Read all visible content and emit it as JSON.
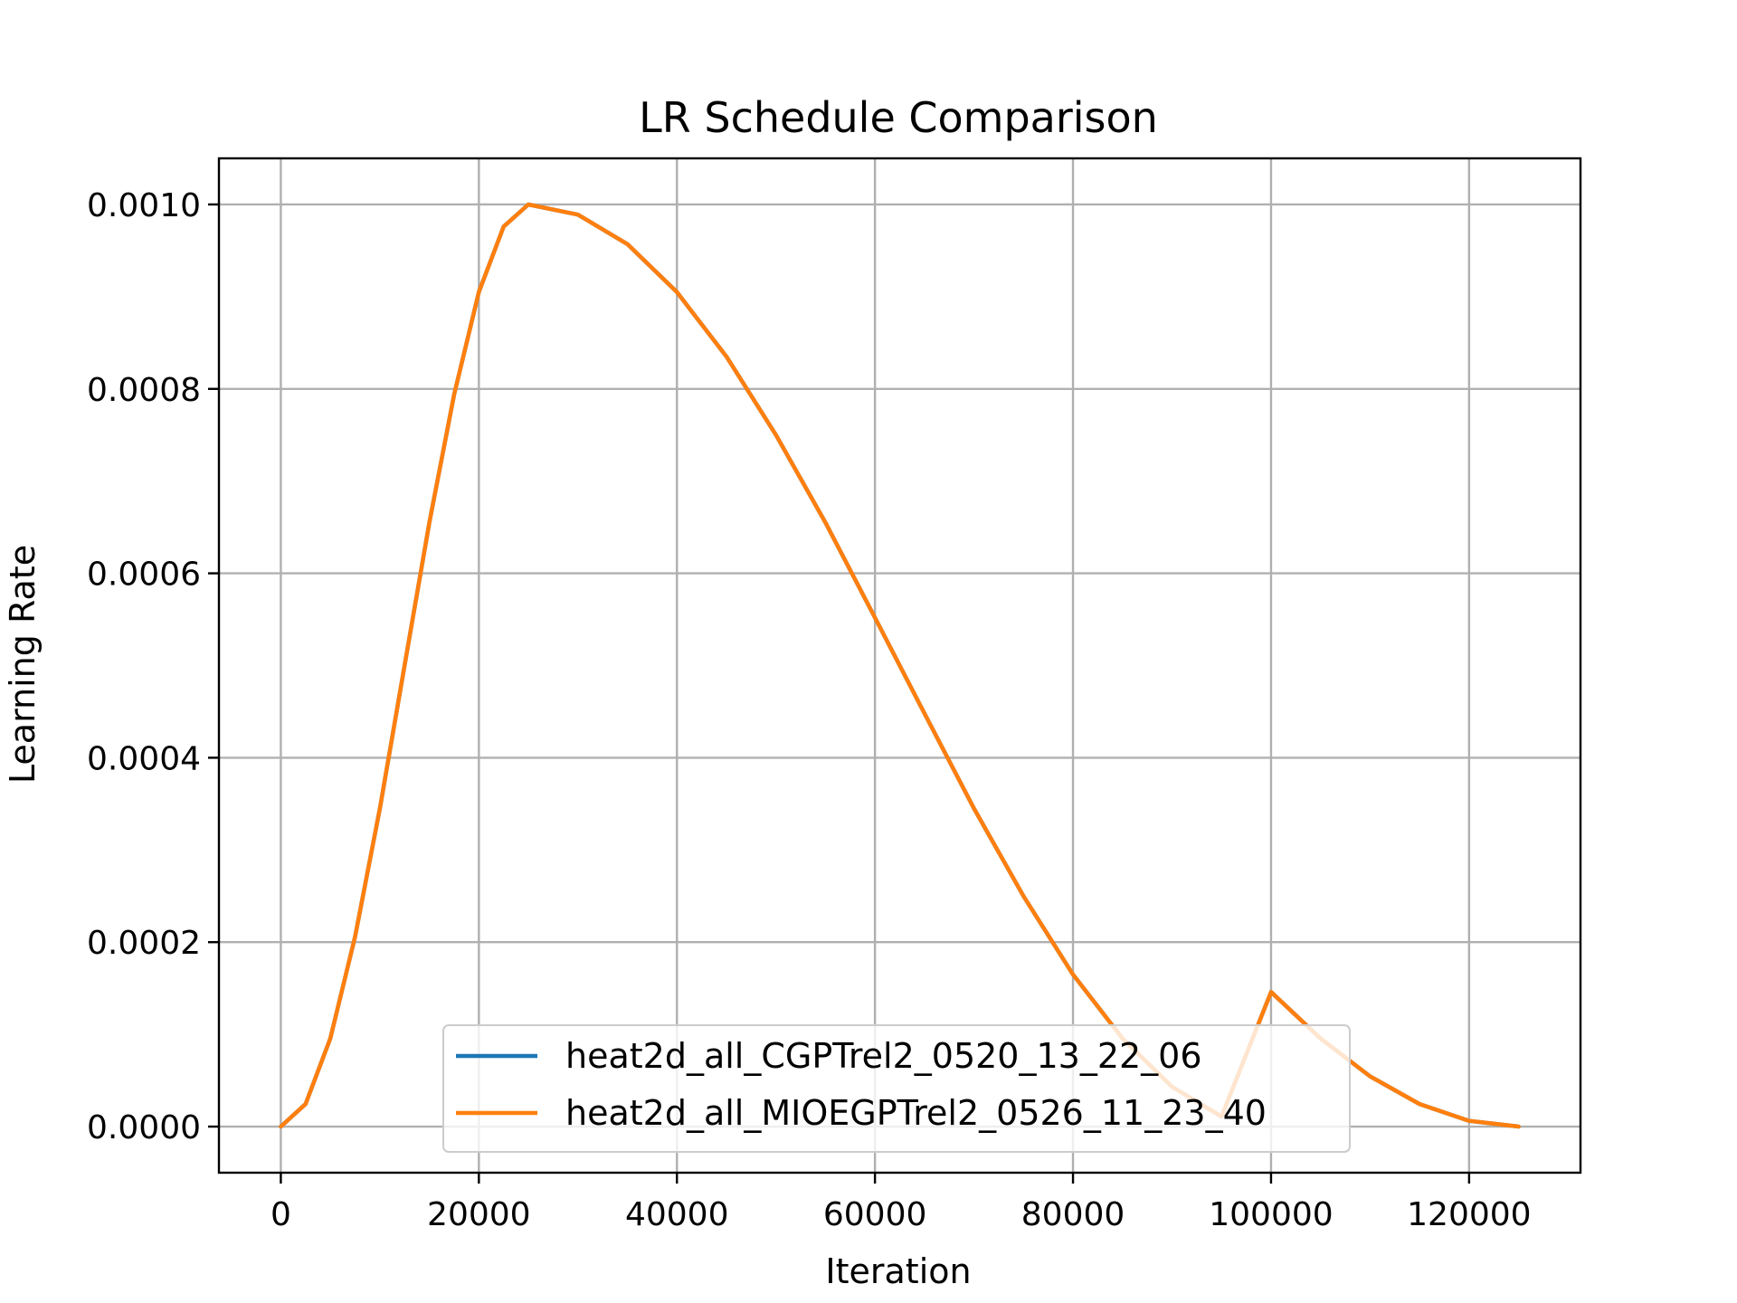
{
  "chart_data": {
    "type": "line",
    "title": "LR Schedule Comparison",
    "xlabel": "Iteration",
    "ylabel": "Learning Rate",
    "xlim": [
      -6250,
      131250
    ],
    "ylim": [
      -5e-05,
      0.00105
    ],
    "grid": true,
    "legend_position": "bottom-center",
    "xticks": [
      0,
      20000,
      40000,
      60000,
      80000,
      100000,
      120000
    ],
    "xtick_labels": [
      "0",
      "20000",
      "40000",
      "60000",
      "80000",
      "100000",
      "120000"
    ],
    "yticks": [
      0,
      0.0002,
      0.0004,
      0.0006,
      0.0008,
      0.001
    ],
    "ytick_labels": [
      "0.0000",
      "0.0002",
      "0.0004",
      "0.0006",
      "0.0008",
      "0.0010"
    ],
    "series": [
      {
        "name": "heat2d_all_CGPTrel2_0520_13_22_06",
        "color": "#1f77b4",
        "x": [
          0,
          2500,
          5000,
          7500,
          10000,
          12500,
          15000,
          17500,
          20000,
          22500,
          25000,
          30000,
          35000,
          40000,
          45000,
          50000,
          55000,
          60000,
          65000,
          70000,
          75000,
          80000,
          85000,
          90000,
          95000,
          100000,
          105000,
          110000,
          115000,
          120000,
          125000
        ],
        "y": [
          0,
          2.45e-05,
          9.55e-05,
          0.000206,
          0.000345,
          0.0005,
          0.000655,
          0.000794,
          0.000905,
          0.000976,
          0.001,
          0.000989,
          0.000957,
          0.000905,
          0.000835,
          0.00075,
          0.000655,
          0.000552,
          0.000448,
          0.000345,
          0.00025,
          0.000165,
          9.55e-05,
          4.32e-05,
          1.09e-05,
          0.000146,
          9.55e-05,
          5.45e-05,
          2.45e-05,
          6.2e-06,
          0
        ]
      },
      {
        "name": "heat2d_all_MIOEGPTrel2_0526_11_23_40",
        "color": "#ff7f0e",
        "x": [
          0,
          2500,
          5000,
          7500,
          10000,
          12500,
          15000,
          17500,
          20000,
          22500,
          25000,
          30000,
          35000,
          40000,
          45000,
          50000,
          55000,
          60000,
          65000,
          70000,
          75000,
          80000,
          85000,
          90000,
          95000,
          100000,
          105000,
          110000,
          115000,
          120000,
          125000
        ],
        "y": [
          0,
          2.45e-05,
          9.55e-05,
          0.000206,
          0.000345,
          0.0005,
          0.000655,
          0.000794,
          0.000905,
          0.000976,
          0.001,
          0.000989,
          0.000957,
          0.000905,
          0.000835,
          0.00075,
          0.000655,
          0.000552,
          0.000448,
          0.000345,
          0.00025,
          0.000165,
          9.55e-05,
          4.32e-05,
          1.09e-05,
          0.000146,
          9.55e-05,
          5.45e-05,
          2.45e-05,
          6.2e-06,
          0
        ]
      }
    ]
  }
}
